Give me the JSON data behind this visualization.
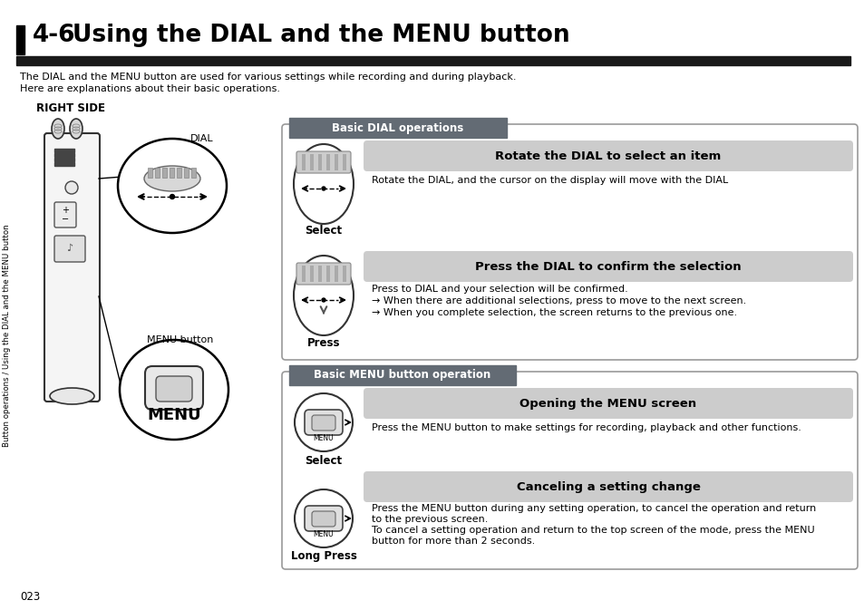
{
  "title_prefix": "4-6",
  "title_rest": "    Using the DIAL and the MENU button",
  "page_num": "023",
  "bg_color": "#ffffff",
  "sidebar_text": "Button operations / Using the DIAL and the MENU button",
  "header_bar_color": "#1a1a1a",
  "intro_line1": "The DIAL and the MENU button are used for various settings while recording and during playback.",
  "intro_line2": "Here are explanations about their basic operations.",
  "right_side_label": "RIGHT SIDE",
  "dial_label": "DIAL",
  "menu_button_label": "MENU button",
  "section1_header": "Basic DIAL operations",
  "section1_header_bg": "#636b74",
  "section1_header_fg": "#ffffff",
  "dial_op1_title": "Rotate the DIAL to select an item",
  "dial_op1_label": "Select",
  "dial_op1_desc": "Rotate the DIAL, and the cursor on the display will move with the DIAL",
  "dial_op2_title": "Press the DIAL to confirm the selection",
  "dial_op2_label": "Press",
  "dial_op2_desc1": "Press to DIAL and your selection will be confirmed.",
  "dial_op2_desc2": "→ When there are additional selections, press to move to the next screen.",
  "dial_op2_desc3": "→ When you complete selection, the screen returns to the previous one.",
  "section2_header": "Basic MENU button operation",
  "section2_header_bg": "#636b74",
  "section2_header_fg": "#ffffff",
  "menu_op1_title": "Opening the MENU screen",
  "menu_op1_label": "Select",
  "menu_op1_desc": "Press the MENU button to make settings for recording, playback and other functions.",
  "menu_op2_title": "Canceling a setting change",
  "menu_op2_label": "Long Press",
  "menu_op2_desc1": "Press the MENU button during any setting operation, to cancel the operation and return",
  "menu_op2_desc2": "to the previous screen.",
  "menu_op2_desc3": "To cancel a setting operation and return to the top screen of the mode, press the MENU",
  "menu_op2_desc4": "button for more than 2 seconds.",
  "box_border_color": "#999999",
  "box_fill_color": "#ffffff",
  "title_bar_bg": "#d0d0d0"
}
